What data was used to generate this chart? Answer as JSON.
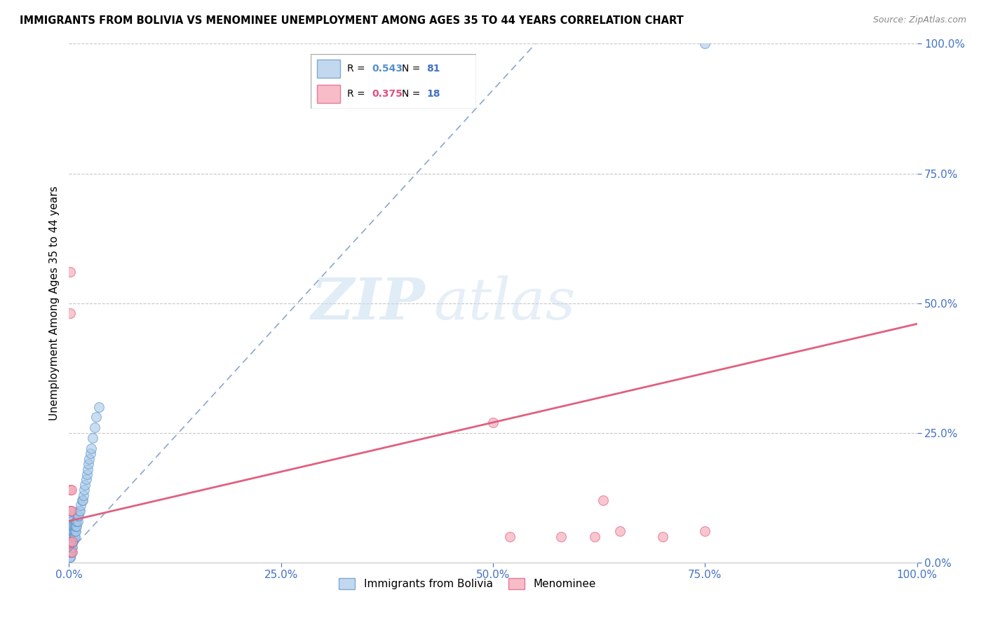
{
  "title": "IMMIGRANTS FROM BOLIVIA VS MENOMINEE UNEMPLOYMENT AMONG AGES 35 TO 44 YEARS CORRELATION CHART",
  "source": "Source: ZipAtlas.com",
  "ylabel": "Unemployment Among Ages 35 to 44 years",
  "blue_label": "Immigrants from Bolivia",
  "pink_label": "Menominee",
  "blue_R": 0.543,
  "blue_N": 81,
  "pink_R": 0.375,
  "pink_N": 18,
  "blue_color": "#a8c8e8",
  "pink_color": "#f4a0b0",
  "blue_edge_color": "#5590c8",
  "pink_edge_color": "#e05080",
  "blue_line_color": "#7090c0",
  "pink_line_color": "#e06080",
  "axis_tick_color": "#4472c4",
  "legend_R_blue_color": "#5590c8",
  "legend_R_pink_color": "#e05080",
  "legend_N_color": "#4472c4",
  "xlim": [
    0.0,
    1.0
  ],
  "ylim": [
    0.0,
    1.0
  ],
  "blue_dots_x": [
    0.0005,
    0.001,
    0.001,
    0.001,
    0.001,
    0.001,
    0.001,
    0.001,
    0.001,
    0.001,
    0.001,
    0.001,
    0.001,
    0.001,
    0.001,
    0.001,
    0.001,
    0.001,
    0.001,
    0.001,
    0.002,
    0.002,
    0.002,
    0.002,
    0.002,
    0.002,
    0.002,
    0.002,
    0.002,
    0.002,
    0.002,
    0.003,
    0.003,
    0.003,
    0.003,
    0.003,
    0.003,
    0.003,
    0.004,
    0.004,
    0.004,
    0.004,
    0.004,
    0.005,
    0.005,
    0.005,
    0.005,
    0.006,
    0.006,
    0.006,
    0.007,
    0.007,
    0.007,
    0.008,
    0.008,
    0.008,
    0.009,
    0.009,
    0.01,
    0.01,
    0.011,
    0.012,
    0.013,
    0.014,
    0.015,
    0.016,
    0.017,
    0.018,
    0.019,
    0.02,
    0.021,
    0.022,
    0.023,
    0.024,
    0.025,
    0.026,
    0.028,
    0.03,
    0.032,
    0.035,
    0.75
  ],
  "blue_dots_y": [
    0.02,
    0.01,
    0.03,
    0.04,
    0.05,
    0.06,
    0.07,
    0.02,
    0.03,
    0.04,
    0.01,
    0.02,
    0.05,
    0.03,
    0.04,
    0.06,
    0.02,
    0.03,
    0.01,
    0.04,
    0.02,
    0.03,
    0.04,
    0.05,
    0.06,
    0.07,
    0.08,
    0.09,
    0.1,
    0.02,
    0.03,
    0.02,
    0.04,
    0.05,
    0.06,
    0.07,
    0.08,
    0.03,
    0.03,
    0.04,
    0.05,
    0.06,
    0.07,
    0.04,
    0.05,
    0.06,
    0.07,
    0.05,
    0.06,
    0.07,
    0.05,
    0.06,
    0.07,
    0.06,
    0.07,
    0.08,
    0.07,
    0.08,
    0.08,
    0.09,
    0.09,
    0.1,
    0.1,
    0.11,
    0.12,
    0.12,
    0.13,
    0.14,
    0.15,
    0.16,
    0.17,
    0.18,
    0.19,
    0.2,
    0.21,
    0.22,
    0.24,
    0.26,
    0.28,
    0.3,
    1.0
  ],
  "pink_dots_x": [
    0.001,
    0.001,
    0.001,
    0.001,
    0.001,
    0.001,
    0.003,
    0.003,
    0.004,
    0.004,
    0.5,
    0.52,
    0.58,
    0.62,
    0.63,
    0.65,
    0.7,
    0.75
  ],
  "pink_dots_y": [
    0.56,
    0.48,
    0.14,
    0.1,
    0.04,
    0.02,
    0.14,
    0.1,
    0.04,
    0.02,
    0.27,
    0.05,
    0.05,
    0.05,
    0.12,
    0.06,
    0.05,
    0.06
  ],
  "blue_trendline": [
    0.0,
    0.55,
    0.02,
    1.0
  ],
  "pink_trendline": [
    0.0,
    1.0,
    0.08,
    0.46
  ],
  "watermark_zip": "ZIP",
  "watermark_atlas": "atlas",
  "background_color": "#ffffff",
  "grid_color": "#c8c8c8",
  "xticks": [
    0.0,
    0.25,
    0.5,
    0.75,
    1.0
  ],
  "yticks": [
    0.0,
    0.25,
    0.5,
    0.75,
    1.0
  ],
  "xtick_labels": [
    "0.0%",
    "25.0%",
    "50.0%",
    "75.0%",
    "100.0%"
  ],
  "ytick_labels": [
    "0.0%",
    "25.0%",
    "50.0%",
    "75.0%",
    "100.0%"
  ]
}
